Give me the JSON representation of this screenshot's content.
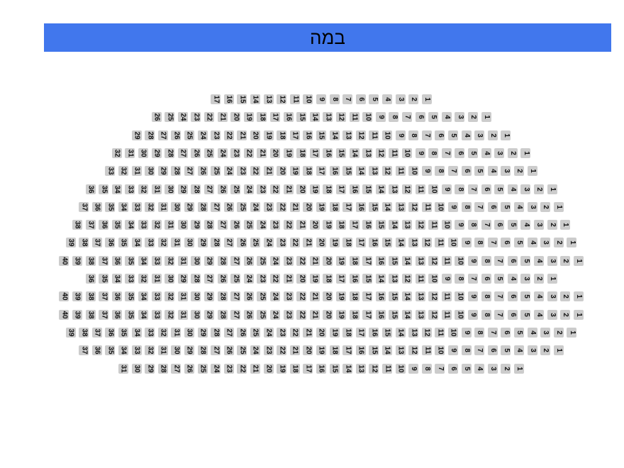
{
  "stage": {
    "label": "במה",
    "color": "#4177ed"
  },
  "seat_color": "#cccccc",
  "rows": [
    {
      "row": 1,
      "seats": 17
    },
    {
      "row": 2,
      "seats": 26
    },
    {
      "row": 3,
      "seats": 29
    },
    {
      "row": 4,
      "seats": 32
    },
    {
      "row": 5,
      "seats": 33
    },
    {
      "row": 6,
      "seats": 36
    },
    {
      "row": 7,
      "seats": 37
    },
    {
      "row": 8,
      "seats": 38
    },
    {
      "row": 9,
      "seats": 39
    },
    {
      "row": 10,
      "seats": 40
    },
    {
      "row": 11,
      "seats": 36
    },
    {
      "row": 12,
      "seats": 40
    },
    {
      "row": 13,
      "seats": 40
    },
    {
      "row": 14,
      "seats": 39
    },
    {
      "row": 15,
      "seats": 37
    },
    {
      "row": 16,
      "seats": 31
    }
  ]
}
